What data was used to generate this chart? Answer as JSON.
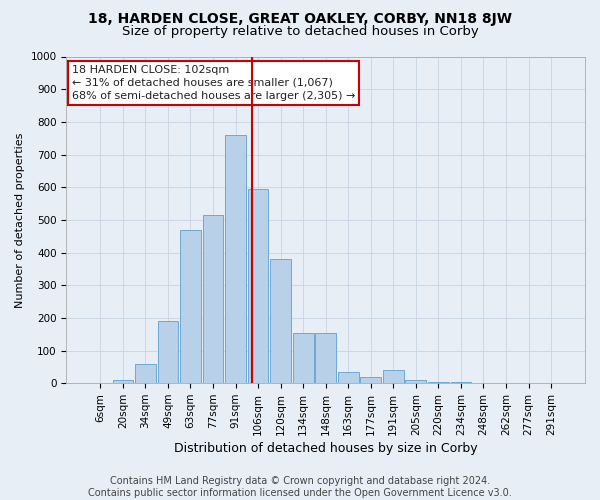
{
  "title1": "18, HARDEN CLOSE, GREAT OAKLEY, CORBY, NN18 8JW",
  "title2": "Size of property relative to detached houses in Corby",
  "xlabel": "Distribution of detached houses by size in Corby",
  "ylabel": "Number of detached properties",
  "footnote": "Contains HM Land Registry data © Crown copyright and database right 2024.\nContains public sector information licensed under the Open Government Licence v3.0.",
  "categories": [
    "6sqm",
    "20sqm",
    "34sqm",
    "49sqm",
    "63sqm",
    "77sqm",
    "91sqm",
    "106sqm",
    "120sqm",
    "134sqm",
    "148sqm",
    "163sqm",
    "177sqm",
    "191sqm",
    "205sqm",
    "220sqm",
    "234sqm",
    "248sqm",
    "262sqm",
    "277sqm",
    "291sqm"
  ],
  "values": [
    0,
    10,
    60,
    190,
    470,
    515,
    760,
    595,
    380,
    155,
    155,
    35,
    20,
    40,
    10,
    5,
    3,
    2,
    1,
    1,
    1
  ],
  "bar_color": "#b8d0e8",
  "bar_edge_color": "#6aaad4",
  "grid_color": "#c8d4e4",
  "background_color": "#e8eef6",
  "vline_label": "18 HARDEN CLOSE: 102sqm",
  "annotation_line1": "← 31% of detached houses are smaller (1,067)",
  "annotation_line2": "68% of semi-detached houses are larger (2,305) →",
  "annotation_box_color": "#ffffff",
  "annotation_box_edge": "#cc0000",
  "annotation_text_color": "#222222",
  "vline_color": "#cc0000",
  "ylim": [
    0,
    1000
  ],
  "yticks": [
    0,
    100,
    200,
    300,
    400,
    500,
    600,
    700,
    800,
    900,
    1000
  ],
  "title1_fontsize": 10,
  "title2_fontsize": 9.5,
  "xlabel_fontsize": 9,
  "ylabel_fontsize": 8,
  "tick_fontsize": 7.5,
  "annot_fontsize": 8,
  "footnote_fontsize": 7
}
